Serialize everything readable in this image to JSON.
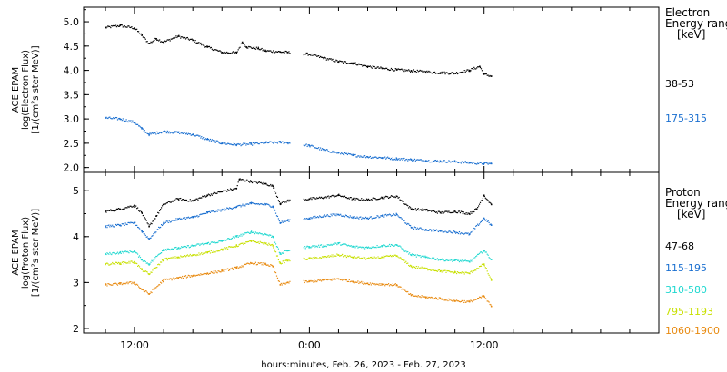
{
  "chart_data": [
    {
      "type": "scatter",
      "panel": "electron",
      "ylabel_lines": [
        "ACE EPAM",
        "log(Electron Flux)",
        "[1/(cm²s ster MeV)]"
      ],
      "ylim": [
        1.9,
        5.3
      ],
      "yticks": [
        "2.0",
        "2.5",
        "3.0",
        "3.5",
        "4.0",
        "4.5",
        "5.0"
      ],
      "yticks_values": [
        2.0,
        2.5,
        3.0,
        3.5,
        4.0,
        4.5,
        5.0
      ],
      "legend_title": [
        "Electron",
        "Energy range",
        "[keV]"
      ],
      "series": [
        {
          "name": "38-53",
          "color": "#000000",
          "points": [
            [
              -2,
              4.88
            ],
            [
              -1,
              4.92
            ],
            [
              0,
              4.87
            ],
            [
              0.5,
              4.72
            ],
            [
              1,
              4.55
            ],
            [
              1.5,
              4.65
            ],
            [
              2,
              4.58
            ],
            [
              3,
              4.7
            ],
            [
              4,
              4.62
            ],
            [
              5,
              4.48
            ],
            [
              6,
              4.37
            ],
            [
              7,
              4.36
            ],
            [
              7.4,
              4.58
            ],
            [
              7.7,
              4.48
            ],
            [
              8.5,
              4.45
            ],
            [
              9,
              4.4
            ],
            [
              10,
              4.38
            ],
            [
              10.5,
              4.37
            ],
            [
              12,
              4.33
            ],
            [
              13,
              4.25
            ],
            [
              14,
              4.18
            ],
            [
              15,
              4.15
            ],
            [
              16,
              4.08
            ],
            [
              17,
              4.04
            ],
            [
              18,
              4.01
            ],
            [
              19,
              3.99
            ],
            [
              20,
              3.97
            ],
            [
              21,
              3.95
            ],
            [
              22,
              3.94
            ],
            [
              23,
              4.0
            ],
            [
              23.7,
              4.08
            ],
            [
              24,
              3.92
            ],
            [
              24.5,
              3.88
            ]
          ]
        },
        {
          "name": "175-315",
          "color": "#1a6fd0",
          "points": [
            [
              -2,
              3.02
            ],
            [
              -1,
              3.0
            ],
            [
              0,
              2.93
            ],
            [
              0.5,
              2.8
            ],
            [
              1,
              2.68
            ],
            [
              2,
              2.74
            ],
            [
              3,
              2.72
            ],
            [
              4,
              2.68
            ],
            [
              5,
              2.58
            ],
            [
              6,
              2.5
            ],
            [
              7,
              2.47
            ],
            [
              8,
              2.48
            ],
            [
              9,
              2.51
            ],
            [
              10,
              2.52
            ],
            [
              10.5,
              2.51
            ],
            [
              12,
              2.45
            ],
            [
              13,
              2.36
            ],
            [
              14,
              2.3
            ],
            [
              15,
              2.25
            ],
            [
              16,
              2.22
            ],
            [
              17,
              2.2
            ],
            [
              18,
              2.18
            ],
            [
              19,
              2.16
            ],
            [
              20,
              2.14
            ],
            [
              21,
              2.13
            ],
            [
              22,
              2.12
            ],
            [
              23,
              2.1
            ],
            [
              24,
              2.08
            ],
            [
              24.5,
              2.08
            ]
          ]
        }
      ]
    },
    {
      "type": "scatter",
      "panel": "proton",
      "ylabel_lines": [
        "ACE EPAM",
        "log(Proton Flux)",
        "[1/(cm²s ster MeV)]"
      ],
      "ylim": [
        1.9,
        5.4
      ],
      "yticks": [
        "2",
        "3",
        "4",
        "5"
      ],
      "yticks_values": [
        2,
        3,
        4,
        5
      ],
      "legend_title": [
        "Proton",
        "Energy range",
        "[keV]"
      ],
      "series": [
        {
          "name": "47-68",
          "color": "#000000",
          "points": [
            [
              -2,
              4.55
            ],
            [
              -1,
              4.6
            ],
            [
              0,
              4.68
            ],
            [
              0.5,
              4.52
            ],
            [
              1,
              4.22
            ],
            [
              1.5,
              4.45
            ],
            [
              2,
              4.7
            ],
            [
              3,
              4.82
            ],
            [
              4,
              4.78
            ],
            [
              5,
              4.9
            ],
            [
              6,
              4.98
            ],
            [
              7,
              5.05
            ],
            [
              7.2,
              5.25
            ],
            [
              8,
              5.2
            ],
            [
              9,
              5.15
            ],
            [
              9.5,
              5.1
            ],
            [
              10,
              4.72
            ],
            [
              10.5,
              4.78
            ],
            [
              12,
              4.82
            ],
            [
              13,
              4.85
            ],
            [
              14,
              4.9
            ],
            [
              15,
              4.82
            ],
            [
              16,
              4.8
            ],
            [
              17,
              4.85
            ],
            [
              18,
              4.88
            ],
            [
              19,
              4.6
            ],
            [
              20,
              4.58
            ],
            [
              21,
              4.52
            ],
            [
              22,
              4.55
            ],
            [
              23,
              4.5
            ],
            [
              23.5,
              4.6
            ],
            [
              24,
              4.9
            ],
            [
              24.5,
              4.7
            ]
          ]
        },
        {
          "name": "115-195",
          "color": "#1a6fd0",
          "points": [
            [
              -2,
              4.22
            ],
            [
              -1,
              4.25
            ],
            [
              0,
              4.3
            ],
            [
              0.5,
              4.12
            ],
            [
              1,
              3.95
            ],
            [
              2,
              4.3
            ],
            [
              3,
              4.38
            ],
            [
              4,
              4.42
            ],
            [
              5,
              4.52
            ],
            [
              6,
              4.58
            ],
            [
              7,
              4.65
            ],
            [
              8,
              4.72
            ],
            [
              9,
              4.7
            ],
            [
              9.5,
              4.66
            ],
            [
              10,
              4.3
            ],
            [
              10.5,
              4.35
            ],
            [
              12,
              4.4
            ],
            [
              13,
              4.45
            ],
            [
              14,
              4.48
            ],
            [
              15,
              4.42
            ],
            [
              16,
              4.4
            ],
            [
              17,
              4.45
            ],
            [
              18,
              4.48
            ],
            [
              19,
              4.2
            ],
            [
              20,
              4.15
            ],
            [
              21,
              4.12
            ],
            [
              22,
              4.1
            ],
            [
              23,
              4.05
            ],
            [
              24,
              4.4
            ],
            [
              24.5,
              4.25
            ]
          ]
        },
        {
          "name": "310-580",
          "color": "#20d8d0",
          "points": [
            [
              -2,
              3.62
            ],
            [
              -1,
              3.65
            ],
            [
              0,
              3.68
            ],
            [
              0.5,
              3.5
            ],
            [
              1,
              3.4
            ],
            [
              2,
              3.72
            ],
            [
              3,
              3.75
            ],
            [
              4,
              3.8
            ],
            [
              5,
              3.85
            ],
            [
              6,
              3.9
            ],
            [
              7,
              4.0
            ],
            [
              8,
              4.1
            ],
            [
              9,
              4.05
            ],
            [
              9.5,
              4.0
            ],
            [
              10,
              3.62
            ],
            [
              10.5,
              3.7
            ],
            [
              12,
              3.78
            ],
            [
              13,
              3.8
            ],
            [
              14,
              3.85
            ],
            [
              15,
              3.78
            ],
            [
              16,
              3.76
            ],
            [
              17,
              3.8
            ],
            [
              18,
              3.82
            ],
            [
              19,
              3.6
            ],
            [
              20,
              3.55
            ],
            [
              21,
              3.5
            ],
            [
              22,
              3.48
            ],
            [
              23,
              3.45
            ],
            [
              24,
              3.7
            ],
            [
              24.5,
              3.5
            ]
          ]
        },
        {
          "name": "795-1193",
          "color": "#c8e000",
          "points": [
            [
              -2,
              3.4
            ],
            [
              -1,
              3.42
            ],
            [
              0,
              3.45
            ],
            [
              0.5,
              3.28
            ],
            [
              1,
              3.18
            ],
            [
              2,
              3.5
            ],
            [
              3,
              3.55
            ],
            [
              4,
              3.6
            ],
            [
              5,
              3.65
            ],
            [
              6,
              3.72
            ],
            [
              7,
              3.8
            ],
            [
              8,
              3.9
            ],
            [
              9,
              3.85
            ],
            [
              9.5,
              3.8
            ],
            [
              10,
              3.42
            ],
            [
              10.5,
              3.48
            ],
            [
              12,
              3.52
            ],
            [
              13,
              3.55
            ],
            [
              14,
              3.6
            ],
            [
              15,
              3.55
            ],
            [
              16,
              3.52
            ],
            [
              17,
              3.55
            ],
            [
              18,
              3.58
            ],
            [
              19,
              3.35
            ],
            [
              20,
              3.3
            ],
            [
              21,
              3.25
            ],
            [
              22,
              3.22
            ],
            [
              23,
              3.2
            ],
            [
              24,
              3.4
            ],
            [
              24.5,
              3.05
            ]
          ]
        },
        {
          "name": "1060-1900",
          "color": "#e88a10",
          "points": [
            [
              -2,
              2.95
            ],
            [
              -1,
              2.97
            ],
            [
              0,
              3.0
            ],
            [
              0.5,
              2.85
            ],
            [
              1,
              2.75
            ],
            [
              2,
              3.05
            ],
            [
              3,
              3.1
            ],
            [
              4,
              3.15
            ],
            [
              5,
              3.2
            ],
            [
              6,
              3.25
            ],
            [
              7,
              3.32
            ],
            [
              8,
              3.42
            ],
            [
              9,
              3.4
            ],
            [
              9.5,
              3.35
            ],
            [
              10,
              2.95
            ],
            [
              10.5,
              3.0
            ],
            [
              12,
              3.02
            ],
            [
              13,
              3.05
            ],
            [
              14,
              3.08
            ],
            [
              15,
              3.02
            ],
            [
              16,
              2.98
            ],
            [
              17,
              2.96
            ],
            [
              18,
              2.95
            ],
            [
              19,
              2.72
            ],
            [
              20,
              2.68
            ],
            [
              21,
              2.65
            ],
            [
              22,
              2.6
            ],
            [
              23,
              2.58
            ],
            [
              24,
              2.7
            ],
            [
              24.5,
              2.48
            ]
          ]
        }
      ]
    }
  ],
  "x_axis": {
    "label": "hours:minutes, Feb. 26, 2023 - Feb. 27, 2023",
    "range_hours": [
      -3.5,
      36
    ],
    "ticks": [
      {
        "hours": 0,
        "label": "12:00"
      },
      {
        "hours": 12,
        "label": "0:00"
      },
      {
        "hours": 24,
        "label": "12:00"
      }
    ],
    "minor_every_hours": 2,
    "gap_hours": [
      10.7,
      11.6
    ]
  }
}
